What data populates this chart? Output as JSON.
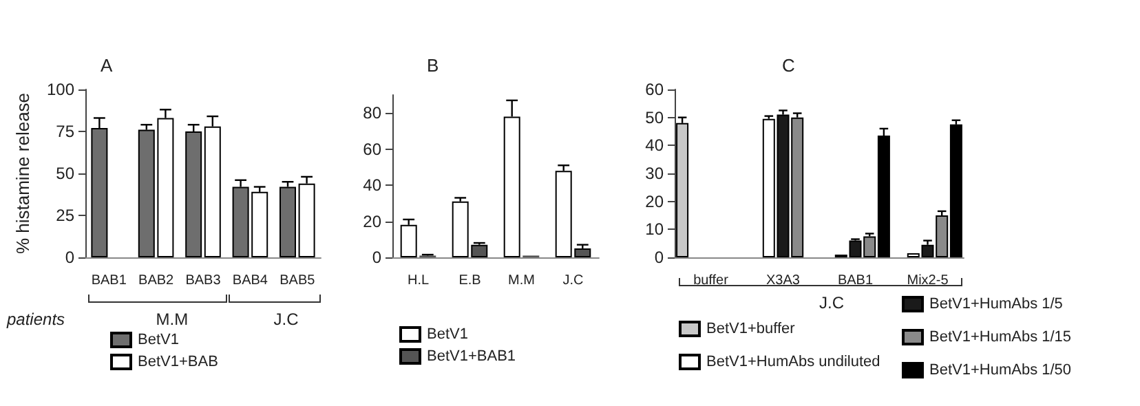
{
  "chart_data": [
    {
      "type": "bar",
      "title": "A",
      "ylabel": "% histamine release",
      "categories": [
        "BAB1",
        "BAB2",
        "BAB3",
        "BAB4",
        "BAB5"
      ],
      "ylim": [
        0,
        100
      ],
      "yticks": [
        0,
        25,
        50,
        75,
        100
      ],
      "legend": "bottom left",
      "annotations": [
        "patients",
        "M.M",
        "J.C"
      ],
      "series": [
        {
          "name": "BetV1",
          "color": "#6e6e6e",
          "values": [
            77,
            76,
            75,
            42,
            42
          ],
          "errors": [
            [
              77,
              83
            ],
            [
              76,
              79
            ],
            [
              75,
              79
            ],
            [
              42,
              46
            ],
            [
              42,
              45
            ]
          ]
        },
        {
          "name": "BetV1+BAB",
          "color": "#ffffff",
          "values": [
            1,
            83,
            78,
            39,
            44
          ],
          "errors": [
            null,
            [
              83,
              88
            ],
            [
              78,
              84
            ],
            [
              39,
              42
            ],
            [
              44,
              48
            ]
          ]
        }
      ]
    },
    {
      "type": "bar",
      "title": "B",
      "categories": [
        "H.L",
        "E.B",
        "M.M",
        "J.C"
      ],
      "ylim": [
        0,
        90
      ],
      "yticks": [
        0,
        20,
        40,
        60,
        80
      ],
      "legend": "bottom left",
      "series": [
        {
          "name": "BetV1",
          "color": "#ffffff",
          "values": [
            18,
            31,
            78,
            48
          ],
          "errors": [
            [
              18,
              21
            ],
            [
              31,
              33
            ],
            [
              78,
              87
            ],
            [
              48,
              51
            ]
          ]
        },
        {
          "name": "BetV1+BAB1",
          "color": "#555555",
          "values": [
            1,
            7,
            1,
            5
          ],
          "errors": [
            [
              1,
              1.5
            ],
            [
              7,
              8
            ],
            null,
            [
              5,
              7
            ]
          ]
        }
      ]
    },
    {
      "type": "bar",
      "title": "C",
      "categories": [
        "buffer",
        "X3A3",
        "BAB1",
        "Mix2-5"
      ],
      "ylim": [
        0,
        60
      ],
      "yticks": [
        0,
        10,
        20,
        30,
        40,
        50,
        60
      ],
      "legend": "bottom",
      "annotations": [
        "J.C"
      ],
      "series": [
        {
          "name": "BetV1+buffer",
          "color": "#c8c8c8",
          "values": [
            48,
            null,
            null,
            null
          ],
          "errors": [
            [
              48,
              50
            ],
            null,
            null,
            null
          ]
        },
        {
          "name": "BetV1+HumAbs undiluted",
          "color": "#ffffff",
          "values": [
            null,
            49.5,
            1,
            1.5
          ],
          "errors": [
            null,
            [
              49.5,
              50.5
            ],
            null,
            null
          ]
        },
        {
          "name": "BetV1+HumAbs 1/5",
          "color": "#1a1a1a",
          "values": [
            null,
            51,
            6,
            4.5
          ],
          "errors": [
            null,
            [
              51,
              52.5
            ],
            [
              6,
              6.5
            ],
            [
              4.5,
              6
            ]
          ]
        },
        {
          "name": "BetV1+HumAbs 1/15",
          "color": "#8a8a8a",
          "values": [
            null,
            50,
            7.5,
            15
          ],
          "errors": [
            null,
            [
              50,
              51.5
            ],
            [
              7.5,
              8.5
            ],
            [
              15,
              16.5
            ]
          ]
        },
        {
          "name": "BetV1+HumAbs 1/50",
          "color": "#000000",
          "values": [
            null,
            null,
            43.5,
            47.5
          ],
          "errors": [
            null,
            null,
            [
              43.5,
              46
            ],
            [
              47.5,
              49
            ]
          ]
        }
      ]
    }
  ]
}
